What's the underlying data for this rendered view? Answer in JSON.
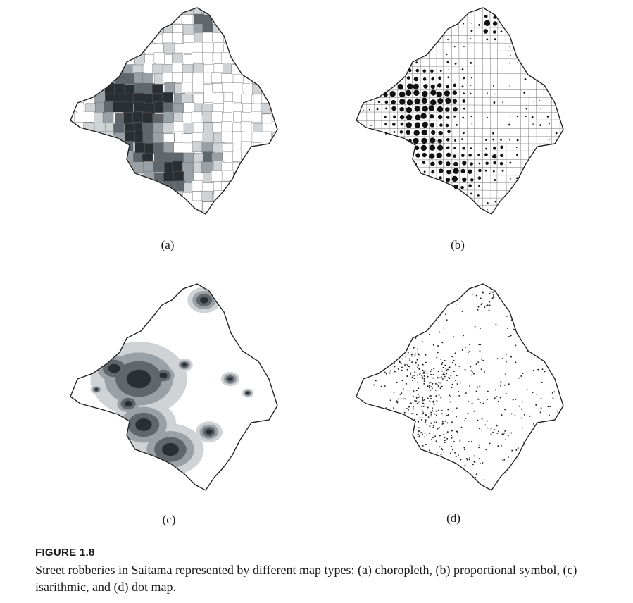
{
  "figure": {
    "title": "FIGURE 1.8",
    "caption": "Street robberies in Saitama represented by different map types: (a) choropleth, (b) proportional symbol, (c) isarithmic, and (d) dot map."
  },
  "panels": [
    {
      "label": "(a)",
      "map_type": "choropleth"
    },
    {
      "label": "(b)",
      "map_type": "proportional symbol"
    },
    {
      "label": "(c)",
      "map_type": "isarithmic"
    },
    {
      "label": "(d)",
      "map_type": "dot map"
    }
  ],
  "colors": {
    "outline": "#222222",
    "shade_light": "#cfd3d6",
    "shade_mid": "#9aa1a6",
    "shade_dark": "#5f676c",
    "shade_darkest": "#2a2f33",
    "symbol": "#111111"
  }
}
